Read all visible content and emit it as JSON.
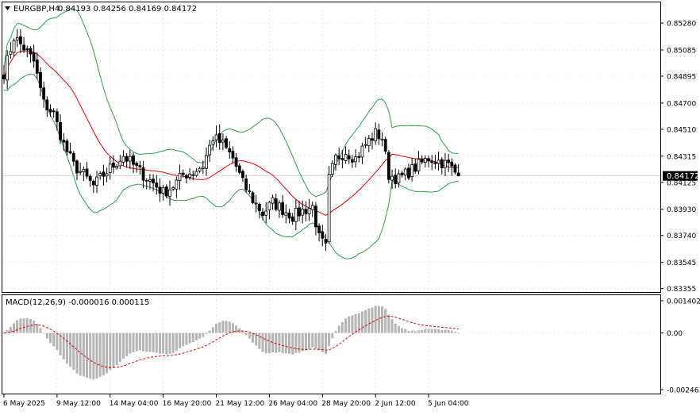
{
  "header": {
    "symbol_text": "EURGBP,H4",
    "ohlc_text": "0.84193 0.84256 0.84169 0.84172",
    "dropdown_icon": "triangle-down-icon"
  },
  "macd_header": {
    "text": "MACD(12,26,9) -0.000016 0.000115"
  },
  "current_price_label": "0.84172",
  "colors": {
    "background": "#ffffff",
    "frame": "#000000",
    "candle": "#000000",
    "moving_average": "#e00000",
    "bollinger_bands": "#2e9e48",
    "macd_histogram": "#b4b4b4",
    "macd_signal": "#e00000",
    "grid": "#d9d9d9",
    "price_tag_bg": "#000000",
    "price_tag_text": "#ffffff"
  },
  "chart_data": {
    "type": "candlestick",
    "symbol": "EURGBP",
    "timeframe": "H4",
    "price_axis": {
      "ticks": [
        "0.85280",
        "0.85085",
        "0.84895",
        "0.84700",
        "0.84510",
        "0.84315",
        "0.84125",
        "0.83930",
        "0.83740",
        "0.83545",
        "0.83355"
      ],
      "ylim": [
        0.8333,
        0.8543
      ]
    },
    "macd_axis": {
      "ticks": [
        "0.001402",
        "0.00",
        "-0.002463"
      ],
      "ylim": [
        -0.002463,
        0.001402
      ]
    },
    "time_axis": {
      "labels": [
        "6 May 2025",
        "9 May 12:00",
        "14 May 04:00",
        "16 May 20:00",
        "21 May 12:00",
        "26 May 04:00",
        "28 May 20:00",
        "2 Jun 12:00",
        "5 Jun 04:00"
      ],
      "label_bar_index": [
        0,
        16,
        32,
        48,
        64,
        80,
        96,
        112,
        128
      ]
    },
    "waypoints": [
      [
        0,
        0.8492
      ],
      [
        3,
        0.8518
      ],
      [
        6,
        0.851
      ],
      [
        9,
        0.85
      ],
      [
        12,
        0.847
      ],
      [
        15,
        0.8462
      ],
      [
        18,
        0.844
      ],
      [
        21,
        0.8425
      ],
      [
        24,
        0.8418
      ],
      [
        27,
        0.841
      ],
      [
        30,
        0.8418
      ],
      [
        33,
        0.8425
      ],
      [
        36,
        0.8432
      ],
      [
        39,
        0.8425
      ],
      [
        42,
        0.8418
      ],
      [
        45,
        0.8412
      ],
      [
        48,
        0.8405
      ],
      [
        51,
        0.841
      ],
      [
        54,
        0.8418
      ],
      [
        57,
        0.842
      ],
      [
        60,
        0.8425
      ],
      [
        63,
        0.8445
      ],
      [
        66,
        0.844
      ],
      [
        69,
        0.843
      ],
      [
        72,
        0.8412
      ],
      [
        75,
        0.84
      ],
      [
        78,
        0.839
      ],
      [
        81,
        0.8398
      ],
      [
        84,
        0.8393
      ],
      [
        87,
        0.8388
      ],
      [
        90,
        0.8392
      ],
      [
        93,
        0.8395
      ],
      [
        95,
        0.8372
      ],
      [
        97,
        0.8365
      ],
      [
        98,
        0.8415
      ],
      [
        100,
        0.843
      ],
      [
        103,
        0.8435
      ],
      [
        106,
        0.843
      ],
      [
        109,
        0.844
      ],
      [
        112,
        0.8448
      ],
      [
        114,
        0.8445
      ],
      [
        116,
        0.8418
      ],
      [
        119,
        0.8415
      ],
      [
        122,
        0.842
      ],
      [
        125,
        0.8425
      ],
      [
        128,
        0.843
      ],
      [
        131,
        0.8428
      ],
      [
        134,
        0.8425
      ],
      [
        137,
        0.84172
      ]
    ],
    "last_close": 0.84172,
    "last_open": 0.84193,
    "last_high": 0.84256,
    "last_low": 0.84169,
    "indicators": {
      "moving_average": {
        "period": 20
      },
      "bollinger_bands": {
        "period": 20,
        "deviations": 2
      },
      "macd": {
        "fast": 12,
        "slow": 26,
        "signal": 9,
        "main": -1.6e-05,
        "signal_value": 0.000115
      }
    }
  }
}
